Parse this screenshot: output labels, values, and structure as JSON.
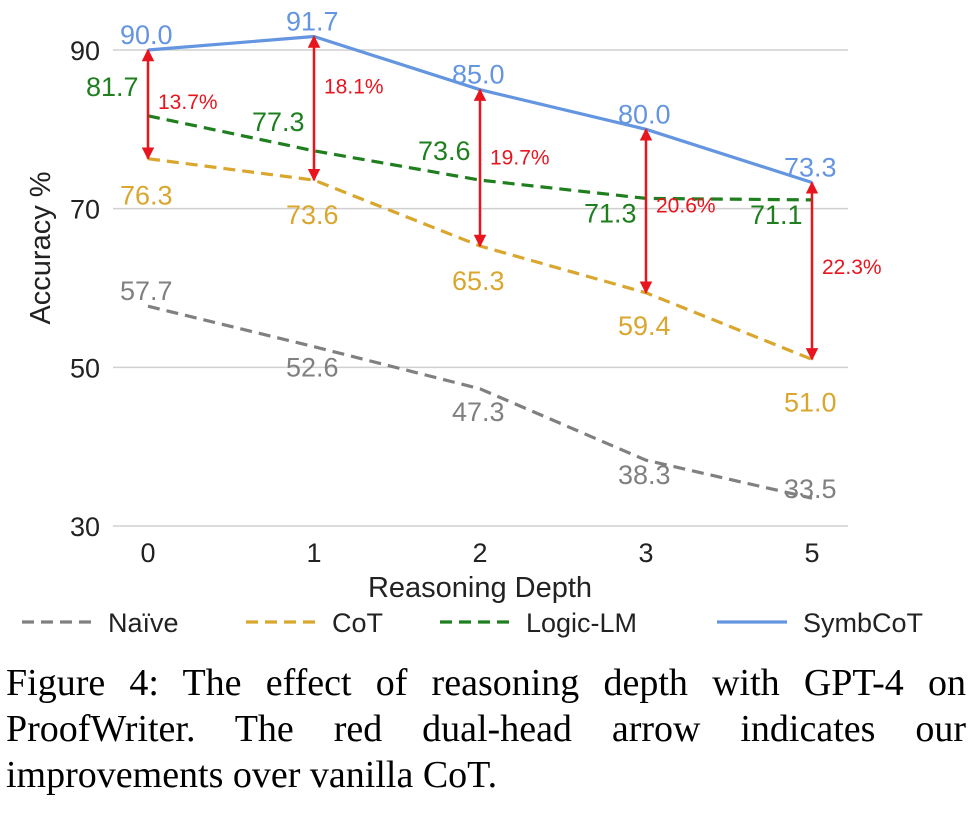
{
  "chart_data": {
    "type": "line",
    "title": "",
    "xlabel": "Reasoning Depth",
    "ylabel": "Accuracy %",
    "categories": [
      "0",
      "1",
      "2",
      "3",
      "5"
    ],
    "ylim": [
      30,
      90
    ],
    "yticks": [
      30,
      50,
      70,
      90
    ],
    "grid": "horizontal",
    "legend_position": "bottom",
    "series": [
      {
        "name": "Naïve",
        "values": [
          57.7,
          52.6,
          47.3,
          38.3,
          33.5
        ],
        "value_labels": [
          "57.7",
          "52.6",
          "47.3",
          "38.3",
          "33.5"
        ],
        "color": "#808080",
        "dash": "dashed"
      },
      {
        "name": "CoT",
        "values": [
          76.3,
          73.6,
          65.3,
          59.4,
          51.0
        ],
        "value_labels": [
          "76.3",
          "73.6",
          "65.3",
          "59.4",
          "51.0"
        ],
        "color": "#d9a62e",
        "dash": "dashed"
      },
      {
        "name": "Logic-LM",
        "values": [
          81.7,
          77.3,
          73.6,
          71.3,
          71.1
        ],
        "value_labels": [
          "81.7",
          "77.3",
          "73.6",
          "71.3",
          "71.1"
        ],
        "color": "#1f7f1f",
        "dash": "dashed"
      },
      {
        "name": "SymbCoT",
        "values": [
          90.0,
          91.7,
          85.0,
          80.0,
          73.3
        ],
        "value_labels": [
          "90.0",
          "91.7",
          "85.0",
          "80.0",
          "73.3"
        ],
        "color": "#6495e0",
        "dash": "solid"
      }
    ],
    "annotations": {
      "arrow_color": "#e8141e",
      "from_series": "CoT",
      "to_series": "SymbCoT",
      "labels": [
        "13.7%",
        "18.1%",
        "19.7%",
        "20.6%",
        "22.3%"
      ]
    }
  },
  "caption": "Figure 4: The effect of reasoning depth with GPT-4 on ProofWriter. The red dual-head arrow indicates our improvements over vanilla CoT."
}
